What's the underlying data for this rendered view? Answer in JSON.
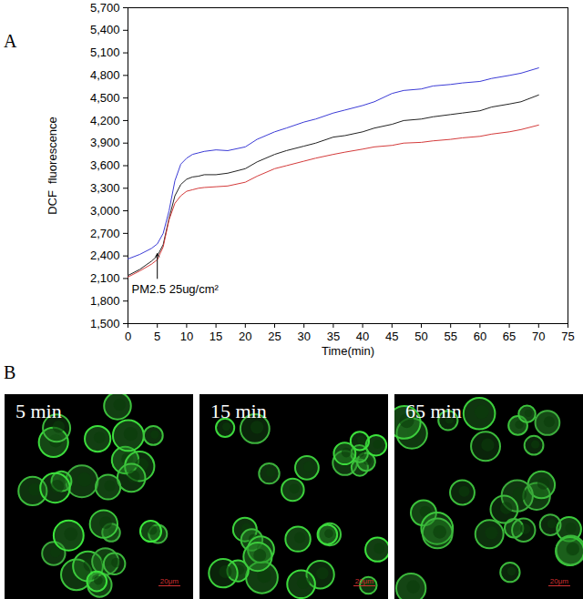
{
  "chart_data": {
    "type": "line",
    "panel_label": "A",
    "xlabel": "Time(min)",
    "ylabel": "DCF  fluorescence",
    "x": [
      0,
      2,
      4,
      5,
      6,
      7,
      8,
      9,
      10,
      11,
      12,
      13,
      15,
      17,
      20,
      22,
      25,
      27,
      30,
      32,
      35,
      37,
      40,
      42,
      45,
      47,
      50,
      52,
      55,
      57,
      60,
      62,
      65,
      67,
      70
    ],
    "series": [
      {
        "color": "#3b3bd6",
        "values": [
          2360,
          2420,
          2500,
          2560,
          2700,
          3000,
          3400,
          3620,
          3700,
          3750,
          3770,
          3790,
          3810,
          3800,
          3850,
          3950,
          4050,
          4100,
          4180,
          4220,
          4300,
          4340,
          4400,
          4450,
          4560,
          4600,
          4620,
          4660,
          4680,
          4700,
          4720,
          4760,
          4800,
          4830,
          4900
        ]
      },
      {
        "color": "#222222",
        "values": [
          2140,
          2220,
          2330,
          2400,
          2550,
          2900,
          3200,
          3350,
          3420,
          3450,
          3460,
          3480,
          3480,
          3500,
          3560,
          3650,
          3750,
          3800,
          3860,
          3900,
          3980,
          4000,
          4050,
          4100,
          4150,
          4200,
          4220,
          4250,
          4280,
          4300,
          4330,
          4380,
          4420,
          4450,
          4540
        ]
      },
      {
        "color": "#d43b3b",
        "values": [
          2120,
          2200,
          2290,
          2350,
          2520,
          2880,
          3100,
          3200,
          3260,
          3280,
          3300,
          3310,
          3320,
          3330,
          3380,
          3460,
          3560,
          3600,
          3660,
          3700,
          3750,
          3780,
          3820,
          3850,
          3870,
          3900,
          3910,
          3930,
          3950,
          3970,
          3990,
          4020,
          4050,
          4080,
          4140
        ]
      }
    ],
    "xlim": [
      0,
      75
    ],
    "xticks": [
      0,
      5,
      10,
      15,
      20,
      25,
      30,
      35,
      40,
      45,
      50,
      55,
      60,
      65,
      70,
      75
    ],
    "ylim": [
      1500,
      5700
    ],
    "yticks": [
      1500,
      1800,
      2100,
      2400,
      2700,
      3000,
      3300,
      3600,
      3900,
      4200,
      4500,
      4800,
      5100,
      5400,
      5700
    ],
    "annotations": [
      {
        "text": "PM2.5 25ug/cm²",
        "x": 0,
        "y": 1960,
        "arrow": {
          "x": 5,
          "y_from": 2100,
          "y_to": 2430
        }
      }
    ]
  },
  "panel_b": {
    "label": "B",
    "images": [
      {
        "caption": "5 min",
        "scale_bar": "20μm"
      },
      {
        "caption": "15 min",
        "scale_bar": "20μm"
      },
      {
        "caption": "65 min",
        "scale_bar": "20μm"
      }
    ]
  }
}
